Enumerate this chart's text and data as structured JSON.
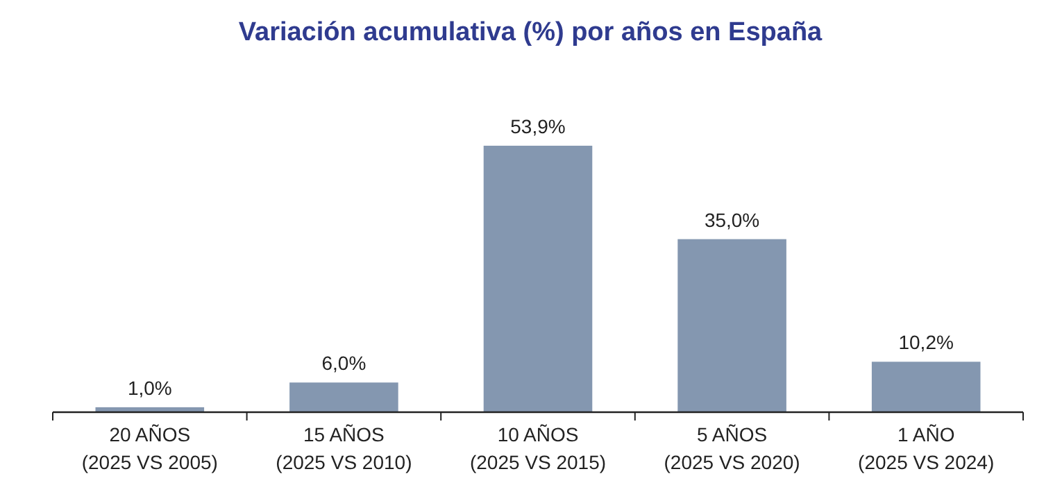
{
  "chart_data": {
    "type": "bar",
    "title": "Variación acumulativa (%) por años en España",
    "categories": [
      "20 AÑOS\n(2025 VS 2005)",
      "15 AÑOS\n(2025 VS 2010)",
      "10 AÑOS\n(2025 VS 2015)",
      "5 AÑOS\n(2025 VS 2020)",
      "1 AÑO\n(2025 VS 2024)"
    ],
    "values": [
      1.0,
      6.0,
      53.9,
      35.0,
      10.2
    ],
    "value_labels": [
      "1,0%",
      "6,0%",
      "53,9%",
      "35,0%",
      "10,2%"
    ],
    "color": "#8497b0"
  }
}
